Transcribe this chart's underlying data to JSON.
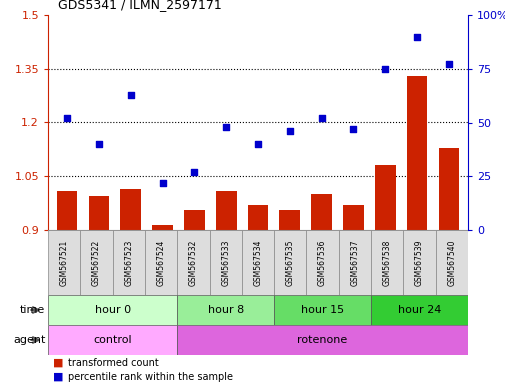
{
  "title": "GDS5341 / ILMN_2597171",
  "samples": [
    "GSM567521",
    "GSM567522",
    "GSM567523",
    "GSM567524",
    "GSM567532",
    "GSM567533",
    "GSM567534",
    "GSM567535",
    "GSM567536",
    "GSM567537",
    "GSM567538",
    "GSM567539",
    "GSM567540"
  ],
  "bar_values": [
    1.01,
    0.995,
    1.015,
    0.915,
    0.955,
    1.01,
    0.97,
    0.955,
    1.0,
    0.97,
    1.08,
    1.33,
    1.13
  ],
  "scatter_values": [
    52,
    40,
    63,
    22,
    27,
    48,
    40,
    46,
    52,
    47,
    75,
    90,
    77
  ],
  "bar_color": "#cc2200",
  "scatter_color": "#0000cc",
  "ylim_left": [
    0.9,
    1.5
  ],
  "ylim_right": [
    0,
    100
  ],
  "yticks_left": [
    0.9,
    1.05,
    1.2,
    1.35,
    1.5
  ],
  "yticks_right": [
    0,
    25,
    50,
    75,
    100
  ],
  "ytick_labels_right": [
    "0",
    "25",
    "50",
    "75",
    "100%"
  ],
  "time_groups": [
    {
      "label": "hour 0",
      "start": 0,
      "end": 4,
      "color": "#ccffcc"
    },
    {
      "label": "hour 8",
      "start": 4,
      "end": 7,
      "color": "#99ee99"
    },
    {
      "label": "hour 15",
      "start": 7,
      "end": 10,
      "color": "#66dd66"
    },
    {
      "label": "hour 24",
      "start": 10,
      "end": 13,
      "color": "#33cc33"
    }
  ],
  "agent_groups": [
    {
      "label": "control",
      "start": 0,
      "end": 4,
      "color": "#ffaaff"
    },
    {
      "label": "rotenone",
      "start": 4,
      "end": 13,
      "color": "#dd66dd"
    }
  ],
  "legend_bar_label": "transformed count",
  "legend_scatter_label": "percentile rank within the sample",
  "time_label": "time",
  "agent_label": "agent",
  "hlines": [
    1.05,
    1.2,
    1.35
  ],
  "bg_color": "#ffffff"
}
